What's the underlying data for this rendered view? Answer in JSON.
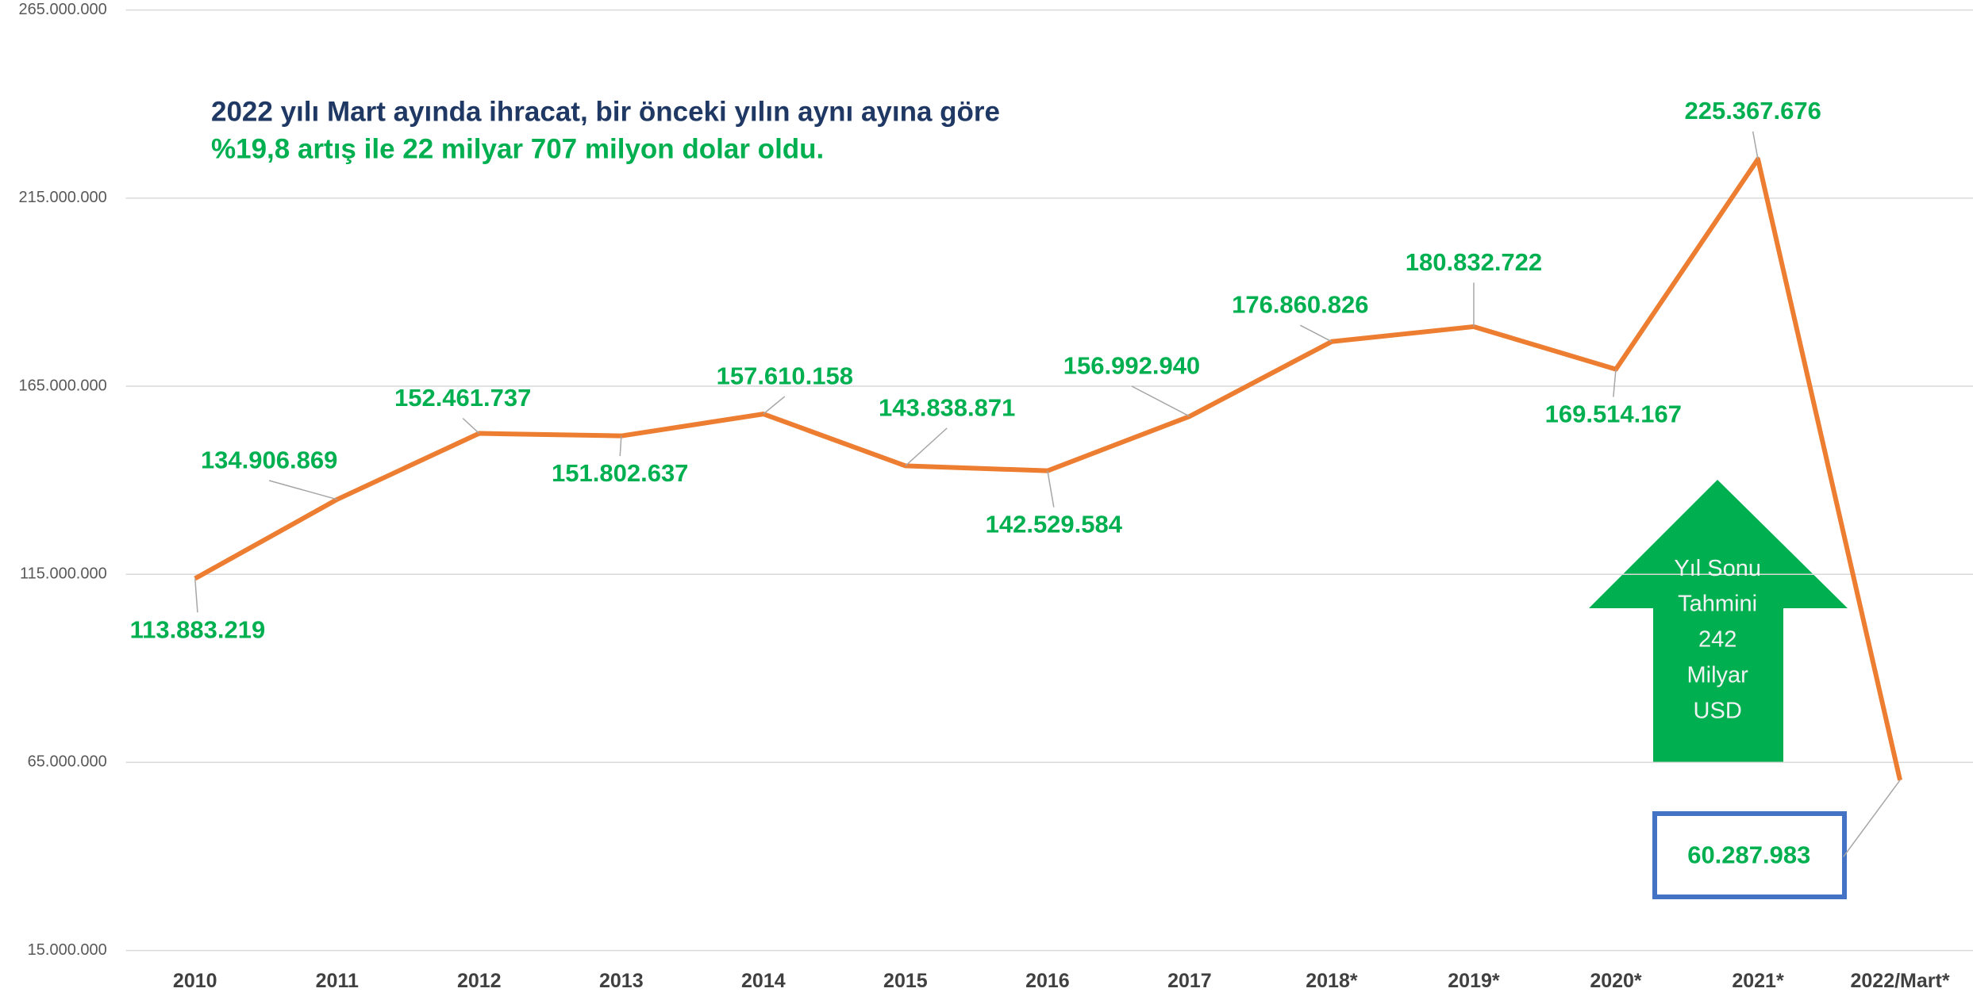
{
  "chart_data": {
    "type": "line",
    "title": [
      "2022 yılı Mart ayında ihracat, bir önceki yılın aynı ayına göre",
      "%19,8 artış ile 22 milyar 707 milyon dolar oldu."
    ],
    "categories": [
      "2010",
      "2011",
      "2012",
      "2013",
      "2014",
      "2015",
      "2016",
      "2017",
      "2018*",
      "2019*",
      "2020*",
      "2021*",
      "2022/Mart*"
    ],
    "series": [
      {
        "color": "#ed7d31",
        "values": [
          113883219,
          134906869,
          152461737,
          151802637,
          157610158,
          143838871,
          142529584,
          156992940,
          176860826,
          180832722,
          169514167,
          225367676,
          60287983
        ],
        "value_labels": [
          "113.883.219",
          "134.906.869",
          "152.461.737",
          "151.802.637",
          "157.610.158",
          "143.838.871",
          "142.529.584",
          "156.992.940",
          "176.860.826",
          "180.832.722",
          "169.514.167",
          "225.367.676",
          "60.287.983"
        ]
      }
    ],
    "ylim": [
      15000000,
      265000000
    ],
    "yticks": [
      {
        "value": 15000000,
        "label": "15.000.000"
      },
      {
        "value": 65000000,
        "label": "65.000.000"
      },
      {
        "value": 115000000,
        "label": "115.000.000"
      },
      {
        "value": 165000000,
        "label": "165.000.000"
      },
      {
        "value": 215000000,
        "label": "215.000.000"
      },
      {
        "value": 265000000,
        "label": "265.000.000"
      }
    ],
    "grid": true,
    "annotation": [
      "Yıl Sonu",
      "Tahmini",
      "242",
      "Milyar",
      "USD"
    ]
  }
}
